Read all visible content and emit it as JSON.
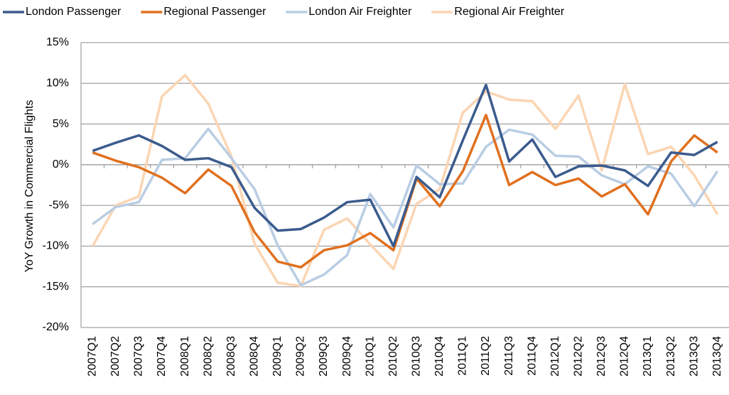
{
  "chart_data": {
    "type": "line",
    "y_label": "YoY Growth in Commercial Flights",
    "categories": [
      "2007Q1",
      "2007Q2",
      "2007Q3",
      "2007Q4",
      "2008Q1",
      "2008Q2",
      "2008Q3",
      "2008Q4",
      "2009Q1",
      "2009Q2",
      "2009Q3",
      "2009Q4",
      "2010Q1",
      "2010Q2",
      "2010Q3",
      "2010Q4",
      "2011Q1",
      "2011Q2",
      "2011Q3",
      "2011Q4",
      "2012Q1",
      "2012Q2",
      "2012Q3",
      "2012Q4",
      "2013Q1",
      "2013Q2",
      "2013Q3",
      "2013Q4"
    ],
    "series": [
      {
        "name": "London Passenger",
        "color": "#3b5b8d",
        "values": [
          1.7,
          2.7,
          3.6,
          2.3,
          0.6,
          0.8,
          -0.3,
          -5.3,
          -8.1,
          -7.9,
          -6.5,
          -4.6,
          -4.3,
          -10.0,
          -1.5,
          -4.0,
          3.0,
          9.8,
          0.4,
          3.1,
          -1.5,
          -0.2,
          -0.1,
          -0.7,
          -2.6,
          1.5,
          1.2,
          2.8
        ]
      },
      {
        "name": "Regional Passenger",
        "color": "#e0701f",
        "values": [
          1.5,
          0.5,
          -0.3,
          -1.6,
          -3.5,
          -0.6,
          -2.6,
          -8.3,
          -11.9,
          -12.6,
          -10.5,
          -9.9,
          -8.4,
          -10.5,
          -1.7,
          -5.1,
          -0.8,
          6.1,
          -2.5,
          -0.9,
          -2.5,
          -1.7,
          -3.9,
          -2.4,
          -6.1,
          0.4,
          3.6,
          1.5
        ]
      },
      {
        "name": "London Air Freighter",
        "color": "#b9cde4",
        "values": [
          -7.3,
          -5.2,
          -4.6,
          0.6,
          0.8,
          4.4,
          0.8,
          -3.0,
          -9.9,
          -14.8,
          -13.5,
          -11.1,
          -3.6,
          -7.7,
          -0.1,
          -2.4,
          -2.3,
          2.2,
          4.3,
          3.7,
          1.1,
          1.0,
          -1.3,
          -2.4,
          -0.2,
          -1.1,
          -5.1,
          -0.8
        ]
      },
      {
        "name": "Regional Air Freighter",
        "color": "#fbd5b3",
        "values": [
          -10.0,
          -5.0,
          -3.9,
          8.4,
          11.0,
          7.5,
          1.0,
          -9.7,
          -14.5,
          -14.9,
          -8.0,
          -6.6,
          -9.8,
          -12.8,
          -4.8,
          -3.0,
          6.4,
          9.0,
          8.0,
          7.8,
          4.4,
          8.5,
          -0.7,
          9.9,
          1.3,
          2.2,
          -1.3,
          -6.1
        ]
      }
    ],
    "ylim": [
      -20,
      15
    ],
    "yticks": [
      {
        "value": -20,
        "label": "-20%"
      },
      {
        "value": -15,
        "label": "-15%"
      },
      {
        "value": -10,
        "label": "-10%"
      },
      {
        "value": -5,
        "label": "-5%"
      },
      {
        "value": 0,
        "label": "0%"
      },
      {
        "value": 5,
        "label": "5%"
      },
      {
        "value": 10,
        "label": "10%"
      },
      {
        "value": 15,
        "label": "15%"
      }
    ],
    "grid": true,
    "legend": "top"
  }
}
